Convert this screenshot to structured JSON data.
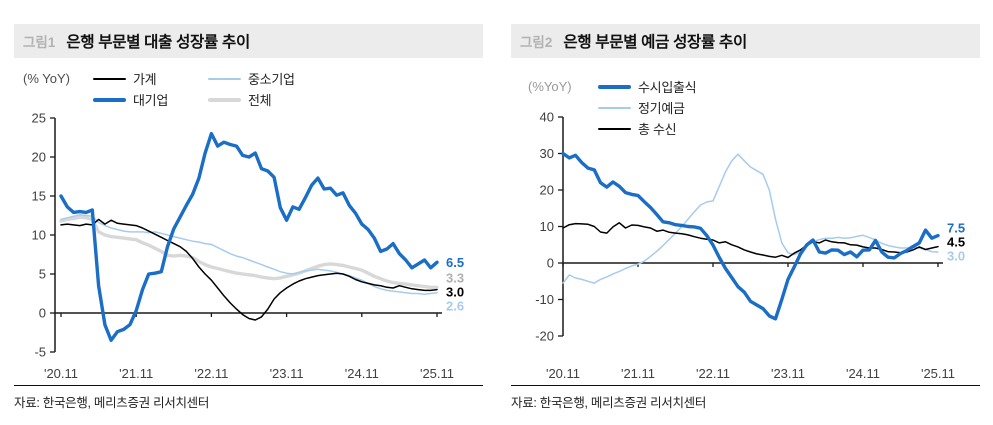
{
  "chart_data": [
    {
      "type": "line",
      "figure_label": "그림1",
      "title": "은행 부문별 대출 성장률 추이",
      "unit_label": "(% YoY)",
      "source": "자료: 한국은행, 메리츠증권 리서치센터",
      "x_monthly_range": [
        "2020-11",
        "2025-11"
      ],
      "xtick_labels": [
        "'20.11",
        "'21.11",
        "'22.11",
        "'23.11",
        "'24.11",
        "'25.11"
      ],
      "ylim": [
        -5,
        25
      ],
      "yticks": [
        -5,
        0,
        5,
        10,
        15,
        20,
        25
      ],
      "grid": false,
      "legend_position": "top",
      "legend_columns": 2,
      "series": [
        {
          "key": "household",
          "name": "가계",
          "color": "#000000",
          "thick": false,
          "z": 3,
          "end_label": "3.0",
          "end_label_color": "#000000",
          "values": [
            11.3,
            11.4,
            11.3,
            11.2,
            11.4,
            11.3,
            12.0,
            11.4,
            11.9,
            11.5,
            11.4,
            11.3,
            11.2,
            10.9,
            10.5,
            10.1,
            9.7,
            9.3,
            8.9,
            8.5,
            7.9,
            7.0,
            5.9,
            5.0,
            4.2,
            3.2,
            2.2,
            1.3,
            0.5,
            -0.2,
            -0.7,
            -0.9,
            -0.5,
            0.5,
            1.8,
            2.6,
            3.2,
            3.7,
            4.1,
            4.4,
            4.6,
            4.8,
            4.9,
            5.0,
            5.1,
            5.0,
            4.7,
            4.3,
            4.0,
            3.8,
            3.6,
            3.5,
            3.3,
            3.2,
            3.5,
            3.3,
            3.1,
            3.0,
            2.9,
            2.9,
            3.0
          ]
        },
        {
          "key": "large-corp",
          "name": "대기업",
          "color": "#1b6ec6",
          "thick": true,
          "z": 4,
          "end_label": "6.5",
          "end_label_color": "#1b6ec6",
          "values": [
            15.0,
            13.6,
            12.9,
            13.0,
            12.9,
            13.2,
            3.5,
            -1.5,
            -3.5,
            -2.4,
            -2.1,
            -1.5,
            0.3,
            3.0,
            5.0,
            5.1,
            5.3,
            8.5,
            10.8,
            12.3,
            13.8,
            15.2,
            17.3,
            20.5,
            23.0,
            21.4,
            21.9,
            21.6,
            21.4,
            20.2,
            20.0,
            20.5,
            18.5,
            18.2,
            17.4,
            13.5,
            11.9,
            13.6,
            13.3,
            14.8,
            16.4,
            17.3,
            15.9,
            16.0,
            15.1,
            15.4,
            13.8,
            12.8,
            11.4,
            10.7,
            9.6,
            7.9,
            8.2,
            8.9,
            7.6,
            6.8,
            5.8,
            6.3,
            6.8,
            5.8,
            6.5
          ]
        },
        {
          "key": "sme",
          "name": "중소기업",
          "color": "#a6cbee",
          "thick": false,
          "z": 2,
          "end_label": "2.6",
          "end_label_color": "#a6cbee",
          "values": [
            12.0,
            12.2,
            12.4,
            12.6,
            12.5,
            12.4,
            11.6,
            11.2,
            10.9,
            10.7,
            10.5,
            10.4,
            10.4,
            10.4,
            10.3,
            10.4,
            10.2,
            10.0,
            9.8,
            9.6,
            9.4,
            9.2,
            9.1,
            8.9,
            8.8,
            8.4,
            8.0,
            7.6,
            7.3,
            7.1,
            6.8,
            6.5,
            6.2,
            5.9,
            5.6,
            5.3,
            5.1,
            5.0,
            5.2,
            5.4,
            5.5,
            5.6,
            5.5,
            5.4,
            5.2,
            5.0,
            4.8,
            4.5,
            4.2,
            3.8,
            3.4,
            3.1,
            2.9,
            2.8,
            2.7,
            2.6,
            2.5,
            2.5,
            2.4,
            2.5,
            2.6
          ]
        },
        {
          "key": "total",
          "name": "전체",
          "color": "#d8d8d8",
          "thick": true,
          "z": 1,
          "end_label": "3.3",
          "end_label_color": "#b0b0b0",
          "values": [
            11.8,
            12.0,
            12.1,
            12.3,
            12.2,
            12.0,
            10.4,
            10.0,
            9.8,
            9.7,
            9.6,
            9.5,
            9.4,
            9.0,
            8.7,
            8.3,
            7.9,
            7.4,
            7.3,
            7.4,
            7.3,
            7.1,
            6.6,
            6.2,
            5.9,
            5.7,
            5.5,
            5.3,
            5.1,
            5.0,
            4.9,
            4.8,
            4.6,
            4.5,
            4.4,
            4.5,
            4.7,
            4.9,
            5.1,
            5.4,
            5.7,
            6.0,
            6.2,
            6.3,
            6.2,
            6.1,
            5.9,
            5.7,
            5.5,
            5.1,
            4.7,
            4.4,
            4.1,
            3.9,
            3.8,
            3.7,
            3.6,
            3.5,
            3.4,
            3.3,
            3.3
          ]
        }
      ]
    },
    {
      "type": "line",
      "figure_label": "그림2",
      "title": "은행 부문별 예금 성장률 추이",
      "unit_label": "(%YoY)",
      "source": "자료: 한국은행, 메리츠증권 리서치센터",
      "x_monthly_range": [
        "2020-11",
        "2025-11"
      ],
      "xtick_labels": [
        "'20.11",
        "'21.11",
        "'22.11",
        "'23.11",
        "'24.11",
        "'25.11"
      ],
      "ylim": [
        -20,
        40
      ],
      "yticks": [
        -20,
        -10,
        0,
        10,
        20,
        30,
        40
      ],
      "grid": false,
      "legend_position": "top",
      "legend_columns": 1,
      "series": [
        {
          "key": "demand-deposit",
          "name": "수시입출식",
          "color": "#1b6ec6",
          "thick": true,
          "z": 3,
          "end_label": "7.5",
          "end_label_color": "#1b6ec6",
          "values": [
            30.0,
            28.8,
            29.5,
            27.5,
            26.0,
            25.5,
            22.0,
            20.8,
            22.2,
            21.0,
            19.3,
            18.8,
            18.5,
            16.8,
            15.2,
            13.3,
            11.3,
            11.0,
            10.5,
            10.3,
            10.0,
            9.9,
            9.5,
            7.5,
            4.9,
            1.5,
            -1.5,
            -4.0,
            -6.5,
            -8.0,
            -10.5,
            -11.5,
            -12.5,
            -14.5,
            -15.3,
            -10.0,
            -4.5,
            -1.0,
            2.5,
            5.0,
            6.3,
            3.0,
            2.7,
            3.6,
            3.5,
            2.3,
            3.0,
            1.7,
            3.5,
            3.6,
            6.2,
            3.0,
            1.6,
            1.4,
            2.6,
            3.4,
            4.5,
            5.5,
            9.0,
            6.8,
            7.5
          ]
        },
        {
          "key": "time-deposit",
          "name": "정기예금",
          "color": "#a6cbee",
          "thick": false,
          "z": 1,
          "end_label": "3.0",
          "end_label_color": "#a6cbee",
          "values": [
            -5.5,
            -3.3,
            -4.1,
            -4.5,
            -5.0,
            -5.5,
            -4.5,
            -3.8,
            -3.0,
            -2.3,
            -1.5,
            -0.8,
            -0.3,
            0.5,
            1.8,
            3.2,
            4.8,
            6.5,
            8.2,
            10.0,
            12.0,
            14.0,
            15.9,
            16.7,
            17.0,
            21.0,
            25.0,
            28.0,
            29.8,
            28.0,
            26.3,
            25.3,
            24.3,
            20.0,
            12.0,
            5.5,
            2.8,
            2.3,
            3.0,
            4.5,
            5.8,
            6.4,
            6.8,
            6.8,
            7.0,
            6.8,
            6.9,
            7.3,
            7.6,
            7.0,
            6.3,
            5.4,
            4.8,
            4.4,
            4.1,
            4.1,
            4.3,
            4.1,
            3.7,
            3.1,
            3.0
          ]
        },
        {
          "key": "total-deposit",
          "name": "총 수신",
          "color": "#000000",
          "thick": false,
          "z": 2,
          "end_label": "4.5",
          "end_label_color": "#000000",
          "values": [
            9.6,
            10.5,
            10.8,
            10.7,
            10.6,
            10.0,
            8.5,
            8.2,
            9.9,
            11.0,
            9.6,
            10.4,
            10.3,
            9.9,
            9.6,
            8.7,
            9.0,
            8.4,
            8.2,
            8.0,
            7.7,
            7.2,
            6.8,
            6.5,
            6.3,
            5.5,
            5.8,
            5.0,
            4.4,
            3.6,
            3.0,
            2.5,
            2.2,
            1.8,
            1.6,
            2.1,
            1.5,
            2.7,
            3.6,
            4.9,
            5.8,
            5.5,
            6.3,
            5.8,
            5.6,
            5.5,
            5.0,
            4.9,
            4.4,
            4.1,
            4.1,
            3.7,
            3.1,
            3.0,
            2.8,
            3.0,
            3.6,
            4.4,
            3.7,
            4.1,
            4.5
          ]
        }
      ]
    }
  ]
}
